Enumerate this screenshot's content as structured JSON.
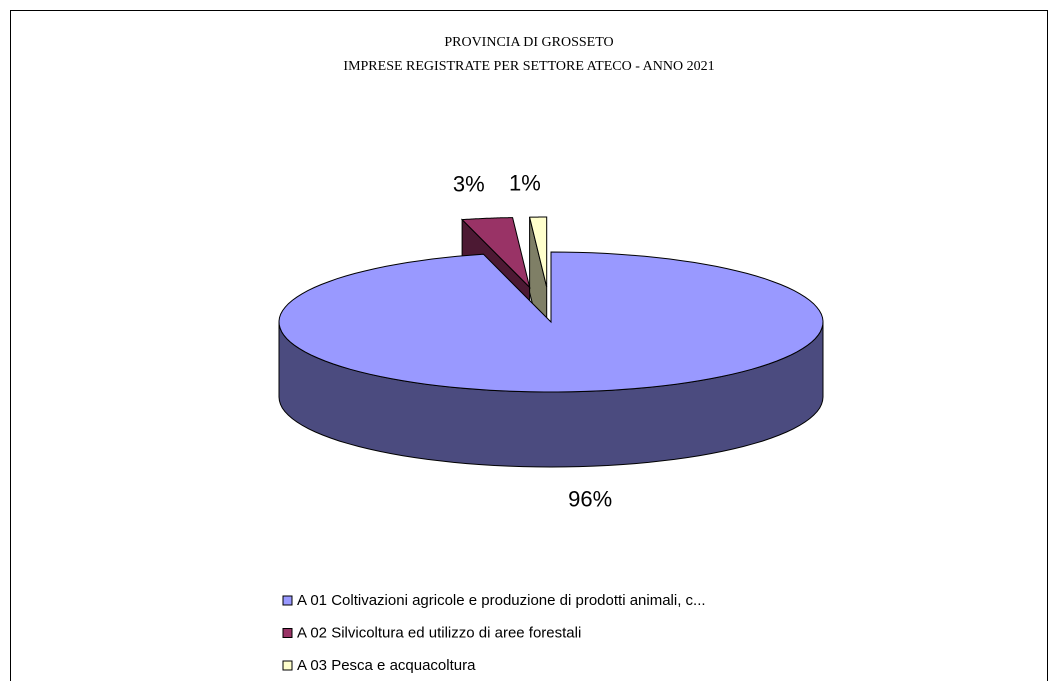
{
  "chart_data": {
    "type": "pie3d",
    "title": [
      "PROVINCIA DI GROSSETO",
      "IMPRESE REGISTRATE  PER SETTORE ATECO - ANNO 2021"
    ],
    "categories": [
      "A 01 Coltivazioni agricole e produzione di prodotti animali, c...",
      "A 02 Silvicoltura ed utilizzo di aree forestali",
      "A 03 Pesca e acquacoltura"
    ],
    "values": [
      96,
      3,
      1
    ],
    "value_labels": [
      "96%",
      "3%",
      "1%"
    ],
    "colors": [
      "#9999ff",
      "#993366",
      "#ffffcc"
    ],
    "side_colors": [
      "#4b4b7f",
      "#4c1933",
      "#7f7f66"
    ],
    "exploded": [
      false,
      true,
      true
    ]
  }
}
